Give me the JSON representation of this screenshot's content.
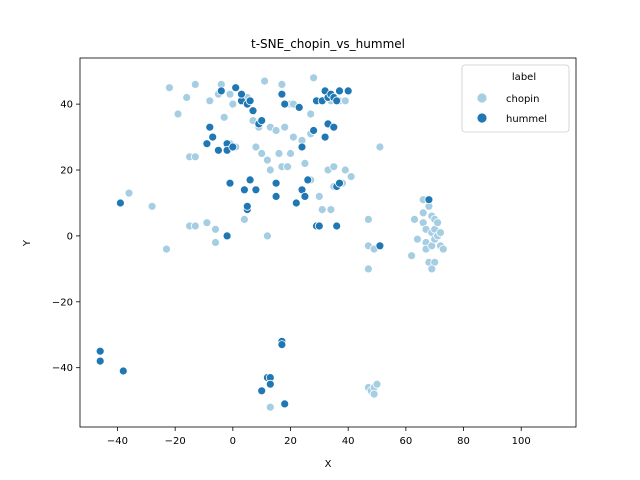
{
  "chart_data": {
    "type": "scatter",
    "title": "t-SNE_chopin_vs_hummel",
    "xlabel": "X",
    "ylabel": "Y",
    "xlim": [
      -53,
      119
    ],
    "ylim": [
      -58,
      54
    ],
    "xticks": [
      -40,
      -20,
      0,
      20,
      40,
      60,
      80,
      100
    ],
    "yticks": [
      -40,
      -20,
      0,
      20,
      40
    ],
    "grid": false,
    "legend": {
      "title": "label",
      "placement": "top-right"
    },
    "series": [
      {
        "name": "chopin",
        "color": "#a6cee3",
        "points": [
          [
            -22,
            45
          ],
          [
            -13,
            46
          ],
          [
            -4,
            46
          ],
          [
            11,
            47
          ],
          [
            17,
            46
          ],
          [
            28,
            48
          ],
          [
            34,
            41
          ],
          [
            37,
            41
          ],
          [
            39,
            41
          ],
          [
            -16,
            42
          ],
          [
            -19,
            37
          ],
          [
            -8,
            41
          ],
          [
            -5,
            43
          ],
          [
            -1,
            43
          ],
          [
            5,
            42
          ],
          [
            20,
            40
          ],
          [
            21,
            40
          ],
          [
            27,
            37
          ],
          [
            0,
            40
          ],
          [
            -3,
            36
          ],
          [
            7,
            35
          ],
          [
            9,
            33
          ],
          [
            13,
            33
          ],
          [
            15,
            32
          ],
          [
            18,
            33
          ],
          [
            21,
            30
          ],
          [
            24,
            29
          ],
          [
            27,
            31
          ],
          [
            -15,
            24
          ],
          [
            -13,
            24
          ],
          [
            -1,
            28
          ],
          [
            1,
            27
          ],
          [
            8,
            27
          ],
          [
            10,
            25
          ],
          [
            12,
            23
          ],
          [
            16,
            25
          ],
          [
            20,
            25
          ],
          [
            13,
            20
          ],
          [
            17,
            21
          ],
          [
            19,
            21
          ],
          [
            25,
            22
          ],
          [
            27,
            17
          ],
          [
            33,
            20
          ],
          [
            35,
            21
          ],
          [
            39,
            20
          ],
          [
            41,
            18
          ],
          [
            51,
            27
          ],
          [
            -36,
            13
          ],
          [
            -28,
            9
          ],
          [
            -15,
            3
          ],
          [
            -13,
            3
          ],
          [
            -9,
            4
          ],
          [
            -6,
            2
          ],
          [
            -6,
            -2
          ],
          [
            -2,
            0
          ],
          [
            4,
            5
          ],
          [
            12,
            0
          ],
          [
            -23,
            -4
          ],
          [
            30,
            12
          ],
          [
            31,
            8
          ],
          [
            34,
            8
          ],
          [
            35,
            15
          ],
          [
            38,
            16
          ],
          [
            47,
            5
          ],
          [
            47,
            -3
          ],
          [
            49,
            -4
          ],
          [
            47,
            -10
          ],
          [
            62,
            -6
          ],
          [
            63,
            5
          ],
          [
            64,
            -1
          ],
          [
            66,
            11
          ],
          [
            66,
            7
          ],
          [
            66,
            4
          ],
          [
            67,
            2
          ],
          [
            67,
            -2
          ],
          [
            67,
            -4
          ],
          [
            68,
            -8
          ],
          [
            68,
            9
          ],
          [
            69,
            6
          ],
          [
            69,
            1
          ],
          [
            69,
            -3
          ],
          [
            69,
            -10
          ],
          [
            70,
            2
          ],
          [
            70,
            -1
          ],
          [
            70,
            5
          ],
          [
            71,
            4
          ],
          [
            71,
            0
          ],
          [
            72,
            1
          ],
          [
            72,
            -3
          ],
          [
            73,
            -4
          ],
          [
            70,
            -8
          ],
          [
            69,
            -10
          ],
          [
            -46,
            -35
          ],
          [
            17,
            -33
          ],
          [
            13,
            -52
          ],
          [
            47,
            -46
          ],
          [
            48,
            -47
          ],
          [
            49,
            -46
          ],
          [
            50,
            -45
          ],
          [
            49,
            -48
          ]
        ]
      },
      {
        "name": "hummel",
        "color": "#1f78b4",
        "points": [
          [
            -4,
            44
          ],
          [
            1,
            45
          ],
          [
            3,
            41
          ],
          [
            3,
            43
          ],
          [
            5,
            40
          ],
          [
            6,
            41
          ],
          [
            7,
            38
          ],
          [
            9,
            34
          ],
          [
            10,
            35
          ],
          [
            17,
            43
          ],
          [
            18,
            40
          ],
          [
            23,
            39
          ],
          [
            29,
            41
          ],
          [
            31,
            41
          ],
          [
            32,
            44
          ],
          [
            33,
            42
          ],
          [
            34,
            43
          ],
          [
            35,
            42
          ],
          [
            36,
            41
          ],
          [
            37,
            44
          ],
          [
            40,
            44
          ],
          [
            33,
            34
          ],
          [
            35,
            33
          ],
          [
            28,
            32
          ],
          [
            32,
            30
          ],
          [
            24,
            27
          ],
          [
            -8,
            33
          ],
          [
            -7,
            30
          ],
          [
            -9,
            28
          ],
          [
            -5,
            26
          ],
          [
            -2,
            28
          ],
          [
            -2,
            26
          ],
          [
            0,
            27
          ],
          [
            -1,
            16
          ],
          [
            4,
            14
          ],
          [
            6,
            17
          ],
          [
            8,
            14
          ],
          [
            15,
            12
          ],
          [
            15,
            16
          ],
          [
            22,
            10
          ],
          [
            24,
            14
          ],
          [
            25,
            12
          ],
          [
            26,
            17
          ],
          [
            29,
            3
          ],
          [
            30,
            3
          ],
          [
            36,
            3
          ],
          [
            36,
            15
          ],
          [
            37,
            16
          ],
          [
            51,
            -3
          ],
          [
            68,
            11
          ],
          [
            -39,
            10
          ],
          [
            -2,
            0
          ],
          [
            5,
            8
          ],
          [
            5,
            9
          ],
          [
            -46,
            -35
          ],
          [
            -46,
            -38
          ],
          [
            -38,
            -41
          ],
          [
            17,
            -32
          ],
          [
            17,
            -33
          ],
          [
            10,
            -47
          ],
          [
            12,
            -43
          ],
          [
            13,
            -43
          ],
          [
            13,
            -45
          ],
          [
            18,
            -51
          ]
        ]
      }
    ]
  }
}
